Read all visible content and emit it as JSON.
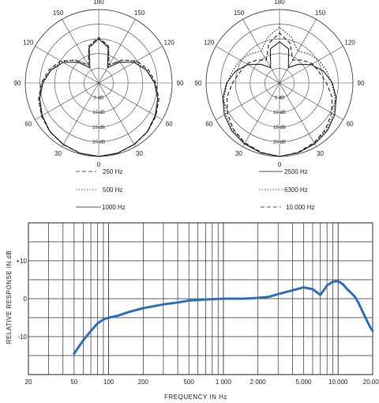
{
  "chart_data": [
    {
      "type": "polar",
      "angle_labels": [
        "180",
        "150",
        "120",
        "90",
        "60",
        "30",
        "0",
        "30",
        "60",
        "90",
        "120",
        "150"
      ],
      "ring_labels": [
        "20 dB",
        "15 dB",
        "10 dB",
        "5 dB"
      ],
      "angles_deg": [
        0,
        15,
        30,
        45,
        60,
        75,
        90,
        105,
        120,
        135,
        150,
        165,
        180
      ],
      "series": [
        {
          "name": "250 Hz",
          "values": [
            0,
            -0.3,
            -0.8,
            -1.5,
            -2.5,
            -3.8,
            -5.5,
            -7.5,
            -10,
            -14,
            -18,
            -12,
            -9.5
          ]
        },
        {
          "name": "500 Hz",
          "values": [
            0,
            -0.3,
            -0.8,
            -1.5,
            -2.6,
            -4,
            -5.8,
            -8,
            -10.5,
            -14,
            -18,
            -12,
            -10
          ]
        },
        {
          "name": "1000 Hz",
          "values": [
            0,
            -0.3,
            -0.9,
            -1.6,
            -2.8,
            -4.2,
            -6,
            -8.2,
            -11,
            -15,
            -19,
            -12.5,
            -10
          ]
        }
      ],
      "rmax_db": 25
    },
    {
      "type": "polar",
      "angle_labels": [
        "180",
        "150",
        "120",
        "90",
        "60",
        "30",
        "0",
        "30",
        "60",
        "90",
        "120",
        "150"
      ],
      "ring_labels": [
        "20 dB",
        "15 dB",
        "10 dB",
        "5 dB"
      ],
      "angles_deg": [
        0,
        15,
        30,
        45,
        60,
        75,
        90,
        105,
        120,
        135,
        150,
        165,
        180
      ],
      "series": [
        {
          "name": "2500 Hz",
          "values": [
            0,
            -0.4,
            -1.1,
            -2,
            -3.3,
            -5,
            -7,
            -9.5,
            -12.5,
            -16,
            -19,
            -13,
            -11
          ]
        },
        {
          "name": "6300 Hz",
          "values": [
            0,
            -0.5,
            -1.3,
            -2.4,
            -3.8,
            -5.4,
            -7.2,
            -8.5,
            -9.5,
            -11,
            -12.5,
            -9,
            -6
          ]
        },
        {
          "name": "10.000 Hz",
          "values": [
            0,
            -0.6,
            -1.5,
            -2.8,
            -4.5,
            -6.5,
            -9,
            -11,
            -12,
            -14,
            -16,
            -11,
            -8
          ]
        }
      ],
      "rmax_db": 25
    },
    {
      "type": "line",
      "xscale": "log",
      "xlim": [
        20,
        20000
      ],
      "ylim": [
        -20,
        20
      ],
      "xticks": [
        20,
        50,
        100,
        200,
        500,
        1000,
        2000,
        5000,
        10000,
        20000
      ],
      "xtick_labels": [
        "20",
        "50",
        "100",
        "200",
        "500",
        "1 000",
        "2 000",
        "5.000",
        "10.000",
        "20.000"
      ],
      "yticks": [
        10,
        0,
        -10
      ],
      "ytick_labels": [
        "+10",
        "0",
        "-10"
      ],
      "xlabel": "FREQUENCY IN Hz",
      "ylabel": "RELATIVE RESPONSE IN dB",
      "grid": true,
      "series": [
        {
          "color": "#2f6fbf",
          "x": [
            50,
            60,
            70,
            80,
            90,
            100,
            120,
            150,
            200,
            300,
            400,
            500,
            700,
            1000,
            1500,
            2000,
            2500,
            3000,
            4000,
            5000,
            6000,
            7000,
            8000,
            9000,
            10000,
            11000,
            12000,
            13000,
            14000,
            15000,
            17000,
            19000,
            20000
          ],
          "y": [
            -14.5,
            -11,
            -8.5,
            -6.5,
            -5.5,
            -5,
            -4.5,
            -3.5,
            -2.5,
            -1.5,
            -1,
            -0.5,
            -0.2,
            0,
            0,
            0.2,
            0.5,
            1.2,
            2.2,
            3,
            2.5,
            1,
            3.5,
            4.5,
            4.6,
            3.8,
            2.5,
            1.5,
            0.5,
            -1,
            -4.5,
            -7.5,
            -8.5
          ]
        }
      ]
    }
  ],
  "legends": {
    "left": [
      {
        "style": "— — —",
        "text": "250 Hz"
      },
      {
        "style": "- - - - - - -",
        "text": "500 Hz"
      },
      {
        "style": "————",
        "text": "1000 Hz"
      }
    ],
    "right": [
      {
        "style": "————",
        "text": "2500 Hz"
      },
      {
        "style": "- - - - - - -",
        "text": "6300 Hz"
      },
      {
        "style": "— — —",
        "text": "10.000 Hz"
      }
    ]
  }
}
